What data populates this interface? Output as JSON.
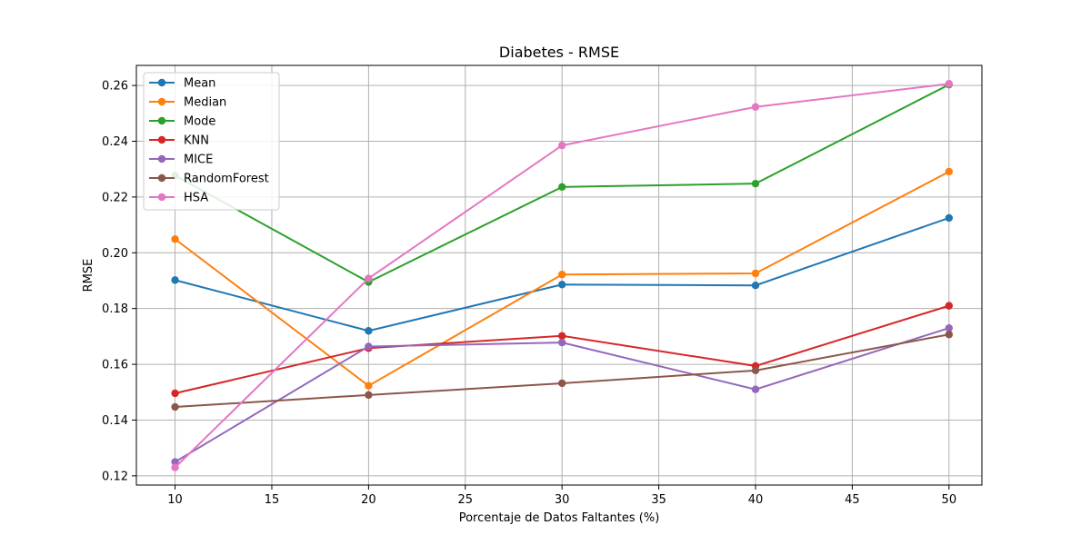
{
  "chart_data": {
    "type": "line",
    "title": "Diabetes - RMSE",
    "xlabel": "Porcentaje de Datos Faltantes (%)",
    "ylabel": "RMSE",
    "x": [
      10,
      20,
      30,
      40,
      50
    ],
    "xlim": [
      8,
      51.7
    ],
    "ylim": [
      0.1167,
      0.2672
    ],
    "xticks": [
      10,
      15,
      20,
      25,
      30,
      35,
      40,
      45,
      50
    ],
    "xtick_labels": [
      "10",
      "15",
      "20",
      "25",
      "30",
      "35",
      "40",
      "45",
      "50"
    ],
    "yticks": [
      0.12,
      0.14,
      0.16,
      0.18,
      0.2,
      0.22,
      0.24,
      0.26
    ],
    "ytick_labels": [
      "0.12",
      "0.14",
      "0.16",
      "0.18",
      "0.20",
      "0.22",
      "0.24",
      "0.26"
    ],
    "grid": true,
    "legend_position": "top-left",
    "series": [
      {
        "name": "Mean",
        "color": "#1f77b4",
        "values": [
          0.1902,
          0.172,
          0.1886,
          0.1883,
          0.2125
        ]
      },
      {
        "name": "Median",
        "color": "#ff7f0e",
        "values": [
          0.2049,
          0.1523,
          0.1922,
          0.1926,
          0.2291
        ]
      },
      {
        "name": "Mode",
        "color": "#2ca02c",
        "values": [
          0.2277,
          0.1895,
          0.2236,
          0.2248,
          0.2603
        ]
      },
      {
        "name": "KNN",
        "color": "#d62728",
        "values": [
          0.1496,
          0.1658,
          0.1702,
          0.1594,
          0.181
        ]
      },
      {
        "name": "MICE",
        "color": "#9467bd",
        "values": [
          0.125,
          0.1664,
          0.1678,
          0.151,
          0.173
        ]
      },
      {
        "name": "RandomForest",
        "color": "#8c564b",
        "values": [
          0.1447,
          0.149,
          0.1532,
          0.1578,
          0.1707
        ]
      },
      {
        "name": "HSA",
        "color": "#e377c2",
        "values": [
          0.123,
          0.1908,
          0.2385,
          0.2523,
          0.2606
        ]
      }
    ]
  }
}
